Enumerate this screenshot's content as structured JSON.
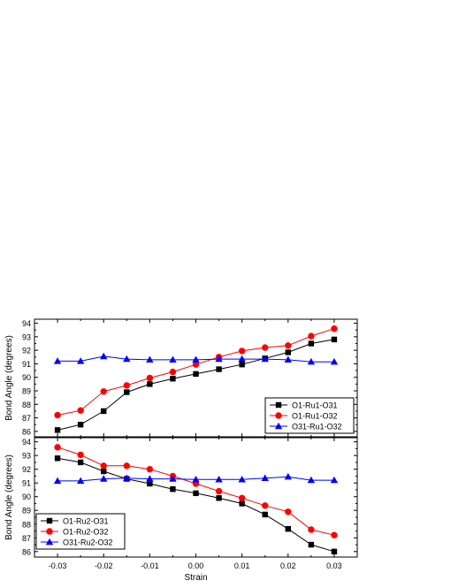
{
  "chart_data": [
    {
      "type": "line",
      "title": "",
      "xlabel": "",
      "ylabel": "Bond Angle (degrees)",
      "x": [
        -0.03,
        -0.025,
        -0.02,
        -0.015,
        -0.01,
        -0.005,
        0.0,
        0.005,
        0.01,
        0.015,
        0.02,
        0.025,
        0.03
      ],
      "xlim": [
        -0.035,
        0.035
      ],
      "ylim": [
        85.6,
        94.3
      ],
      "yticks": [
        "86",
        "87",
        "88",
        "89",
        "90",
        "91",
        "92",
        "93",
        "94"
      ],
      "legend_position": "bottom-right",
      "series": [
        {
          "name": "O1-Ru1-O31",
          "color": "#000000",
          "marker": "square",
          "values": [
            86.1,
            86.5,
            87.5,
            88.9,
            89.5,
            89.9,
            90.25,
            90.6,
            90.95,
            91.4,
            91.85,
            92.5,
            92.8
          ]
        },
        {
          "name": "O1-Ru1-O32",
          "color": "#ff0000",
          "marker": "circle",
          "values": [
            87.2,
            87.55,
            88.95,
            89.4,
            89.95,
            90.4,
            90.95,
            91.5,
            91.95,
            92.2,
            92.35,
            93.05,
            93.6
          ]
        },
        {
          "name": "O31-Ru1-O32",
          "color": "#0000ff",
          "marker": "triangle",
          "values": [
            91.2,
            91.2,
            91.55,
            91.35,
            91.3,
            91.3,
            91.3,
            91.35,
            91.35,
            91.35,
            91.3,
            91.15,
            91.15
          ]
        }
      ]
    },
    {
      "type": "line",
      "title": "",
      "xlabel": "Strain",
      "ylabel": "Bond Angle (degrees)",
      "x": [
        -0.03,
        -0.025,
        -0.02,
        -0.015,
        -0.01,
        -0.005,
        0.0,
        0.005,
        0.01,
        0.015,
        0.02,
        0.025,
        0.03
      ],
      "xlim": [
        -0.035,
        0.035
      ],
      "ylim": [
        85.6,
        94.3
      ],
      "yticks": [
        "86",
        "87",
        "88",
        "89",
        "90",
        "91",
        "92",
        "93",
        "94"
      ],
      "xticks": [
        "-0.03",
        "-0.02",
        "-0.01",
        "0.00",
        "0.01",
        "0.02",
        "0.03"
      ],
      "legend_position": "bottom-left",
      "series": [
        {
          "name": "O1-Ru2-O31",
          "color": "#000000",
          "marker": "square",
          "values": [
            92.8,
            92.5,
            91.85,
            91.3,
            90.95,
            90.55,
            90.25,
            89.9,
            89.5,
            88.7,
            87.65,
            86.5,
            86.0
          ]
        },
        {
          "name": "O1-Ru2-O32",
          "color": "#ff0000",
          "marker": "circle",
          "values": [
            93.6,
            93.05,
            92.25,
            92.25,
            92.0,
            91.5,
            90.95,
            90.4,
            89.9,
            89.35,
            88.9,
            87.6,
            87.2
          ]
        },
        {
          "name": "O31-Ru2-O32",
          "color": "#0000ff",
          "marker": "triangle",
          "values": [
            91.15,
            91.15,
            91.3,
            91.35,
            91.3,
            91.3,
            91.25,
            91.25,
            91.25,
            91.35,
            91.45,
            91.2,
            91.2
          ]
        }
      ]
    }
  ]
}
